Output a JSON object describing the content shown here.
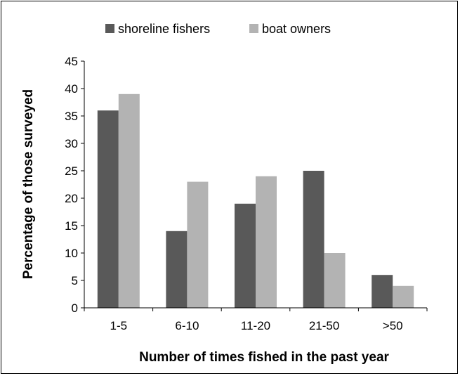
{
  "chart_data": {
    "type": "bar",
    "categories": [
      "1-5",
      "6-10",
      "11-20",
      "21-50",
      ">50"
    ],
    "series": [
      {
        "name": "shoreline fishers",
        "values": [
          36,
          14,
          19,
          25,
          6
        ],
        "color": "#595959"
      },
      {
        "name": "boat owners",
        "values": [
          39,
          23,
          24,
          10,
          4
        ],
        "color": "#b3b3b3"
      }
    ],
    "xlabel": "Number of times fished in the past year",
    "ylabel": "Percentage of those surveyed",
    "ylim": [
      0,
      45
    ],
    "yticks": [
      0,
      5,
      10,
      15,
      20,
      25,
      30,
      35,
      40,
      45
    ],
    "grid": false,
    "legend_position": "top"
  }
}
